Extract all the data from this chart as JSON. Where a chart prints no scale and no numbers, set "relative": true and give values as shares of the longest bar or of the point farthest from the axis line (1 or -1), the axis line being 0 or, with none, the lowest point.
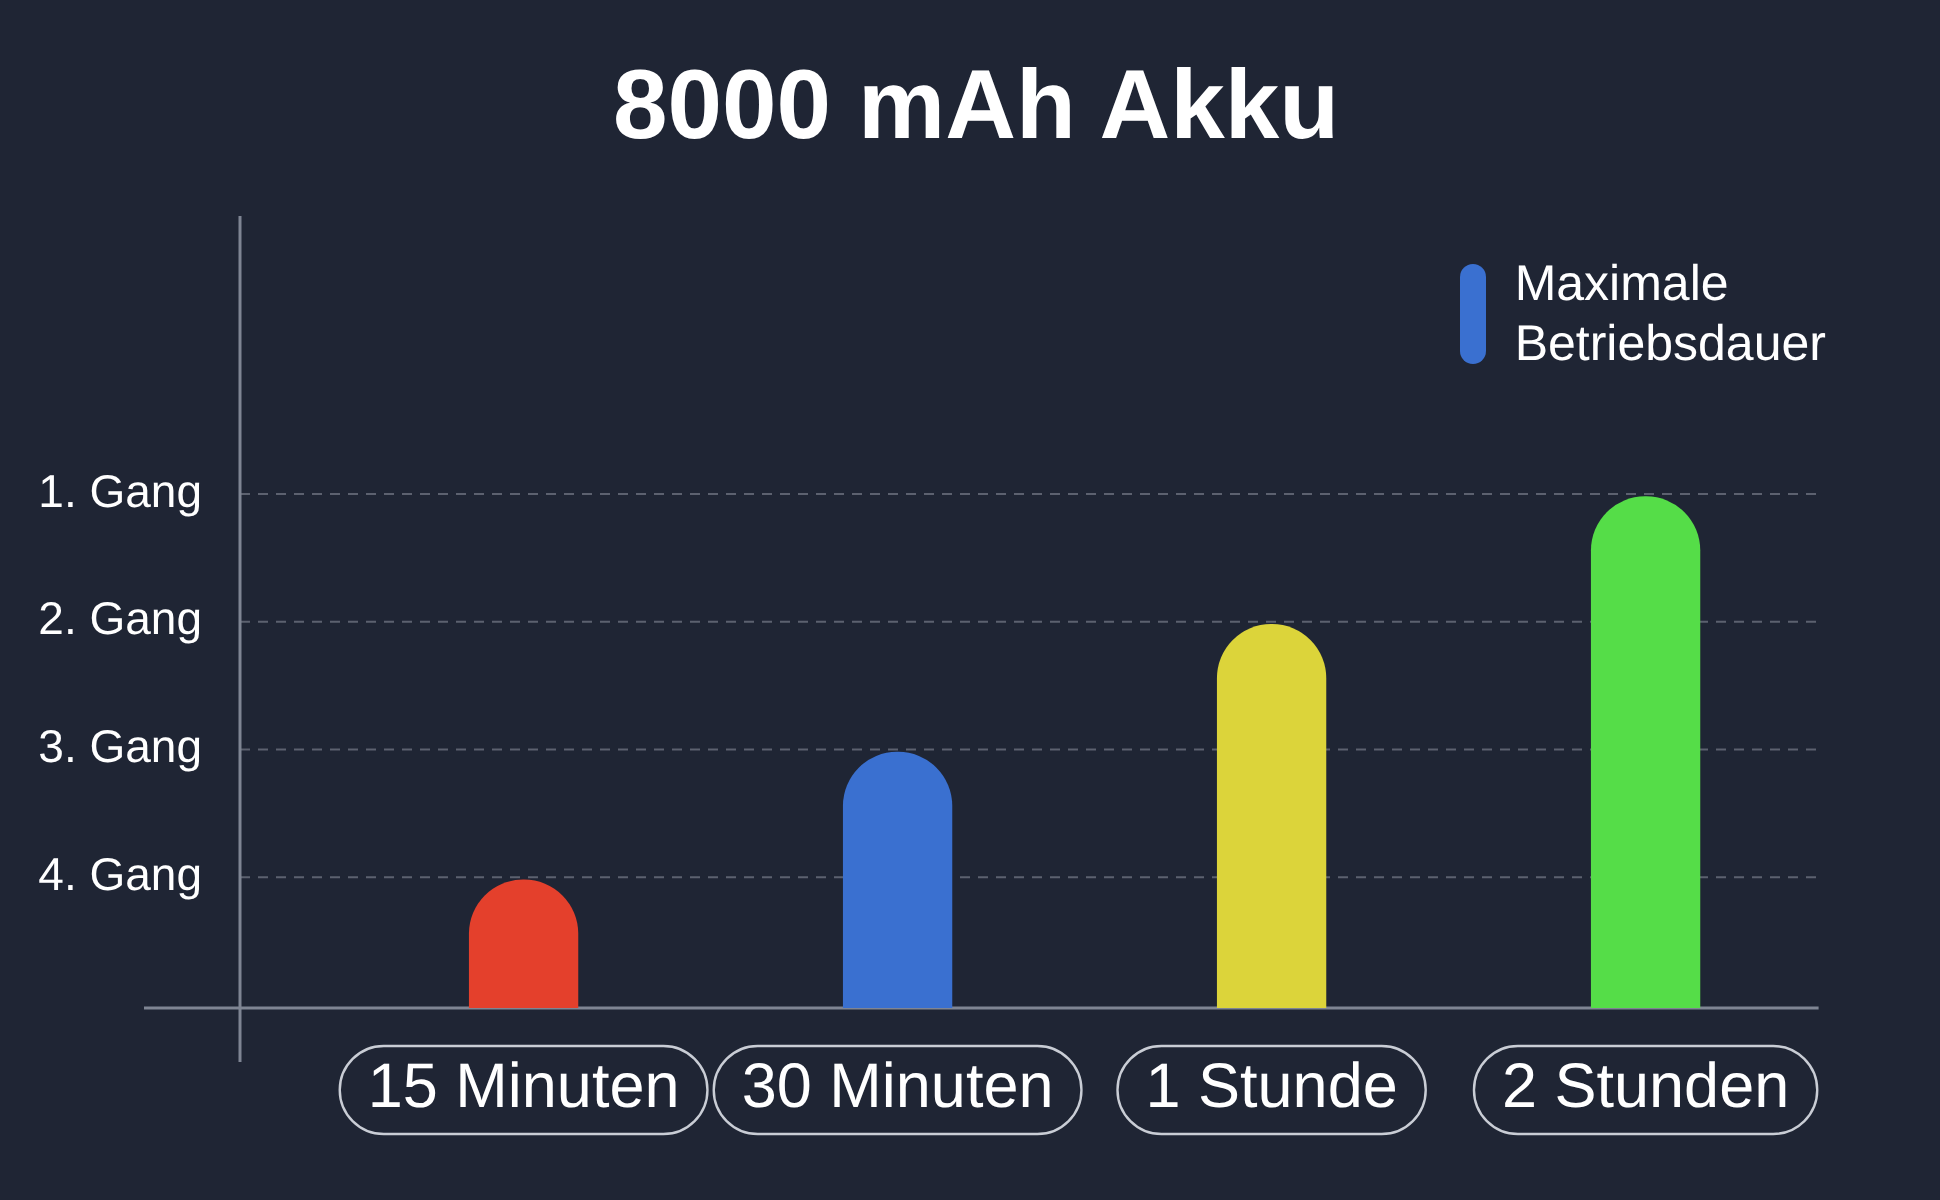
{
  "chart_data": {
    "type": "bar",
    "title": "8000 mAh Akku",
    "categories": [
      "15 Minuten",
      "30 Minuten",
      "1 Stunde",
      "2 Stunden"
    ],
    "series": [
      {
        "name": "Maximale Betriebsdauer",
        "color": "#3a70d0",
        "colors": [
          "#e4402c",
          "#3a70d0",
          "#dcd43a",
          "#55dd48"
        ],
        "values": [
          0.25,
          0.5,
          0.75,
          1
        ]
      }
    ],
    "relative": true,
    "ref_lines": [
      {
        "axis": "y",
        "value": 0.25,
        "label": "4. Gang",
        "color": "#5c616f",
        "line_style": "dashed"
      },
      {
        "axis": "y",
        "value": 0.5,
        "label": "3. Gang",
        "color": "#5c616f",
        "line_style": "dashed"
      },
      {
        "axis": "y",
        "value": 0.75,
        "label": "2. Gang",
        "color": "#5c616f",
        "line_style": "dashed"
      },
      {
        "axis": "y",
        "value": 1,
        "label": "1. Gang",
        "color": "#5c616f",
        "line_style": "dashed"
      }
    ],
    "legend": "top right"
  }
}
